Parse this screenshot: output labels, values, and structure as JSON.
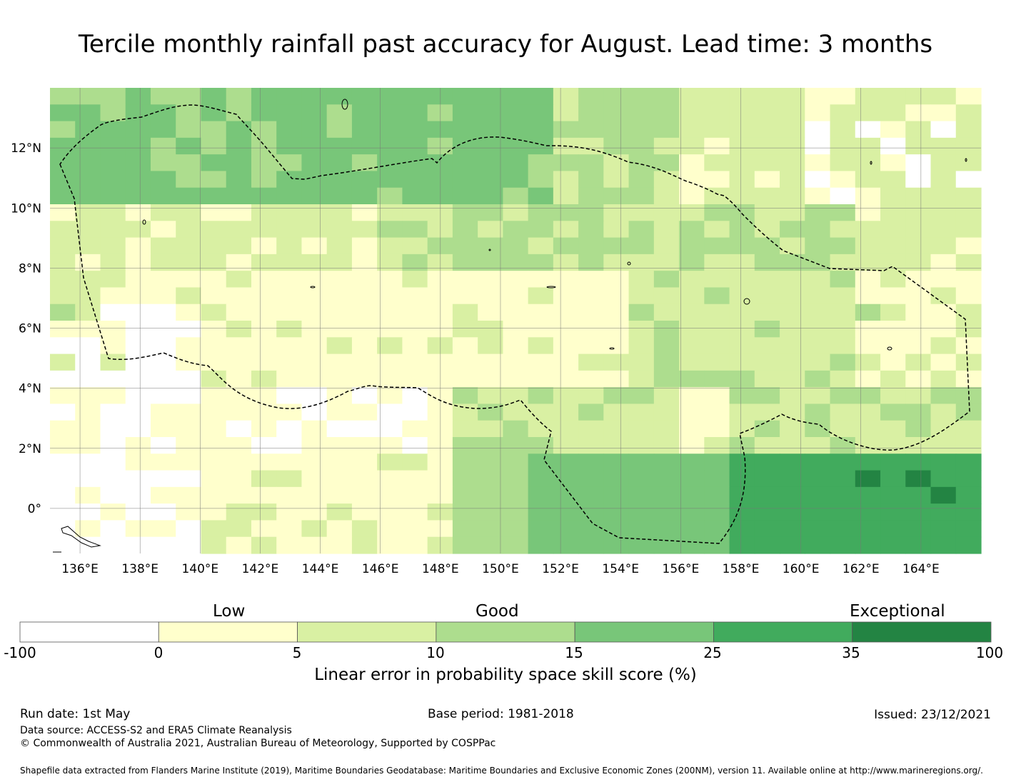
{
  "title": "Tercile monthly rainfall past accuracy for August. Lead time: 3 months",
  "map": {
    "lon_range": [
      135,
      166
    ],
    "lat_range": [
      -1.5,
      14
    ],
    "lon_ticks": [
      "136°E",
      "138°E",
      "140°E",
      "142°E",
      "144°E",
      "146°E",
      "148°E",
      "150°E",
      "152°E",
      "154°E",
      "156°E",
      "158°E",
      "160°E",
      "162°E",
      "164°E"
    ],
    "lat_ticks": [
      "0°",
      "2°N",
      "4°N",
      "6°N",
      "8°N",
      "10°N",
      "12°N"
    ],
    "grid": true,
    "eez_boundary_style": "dashed"
  },
  "colorbar": {
    "category_labels": [
      "Low",
      "Good",
      "Exceptional"
    ],
    "tick_labels": [
      "-100",
      "0",
      "5",
      "10",
      "15",
      "25",
      "35",
      "100"
    ],
    "colors": [
      "#ffffff",
      "#ffffcc",
      "#d9f0a3",
      "#addd8e",
      "#78c679",
      "#41ab5d",
      "#238443"
    ],
    "title": "Linear error in probability space skill score (%)"
  },
  "footer": {
    "run_date": "Run date: 1st May",
    "base_period": "Base period: 1981-2018",
    "issued": "Issued: 23/12/2021",
    "data_source": "Data source: ACCESS-S2 and ERA5 Climate Reanalysis",
    "copyright": "© Commonwealth of Australia 2021, Australian Bureau of Meteorology, Supported by COSPPac",
    "shapefile": "Shapefile data extracted from Flanders Marine Institute (2019), Maritime Boundaries Geodatabase: Maritime Boundaries and Exclusive Economic Zones (200NM), version 11. Available online at http://www.marineregions.org/."
  }
}
